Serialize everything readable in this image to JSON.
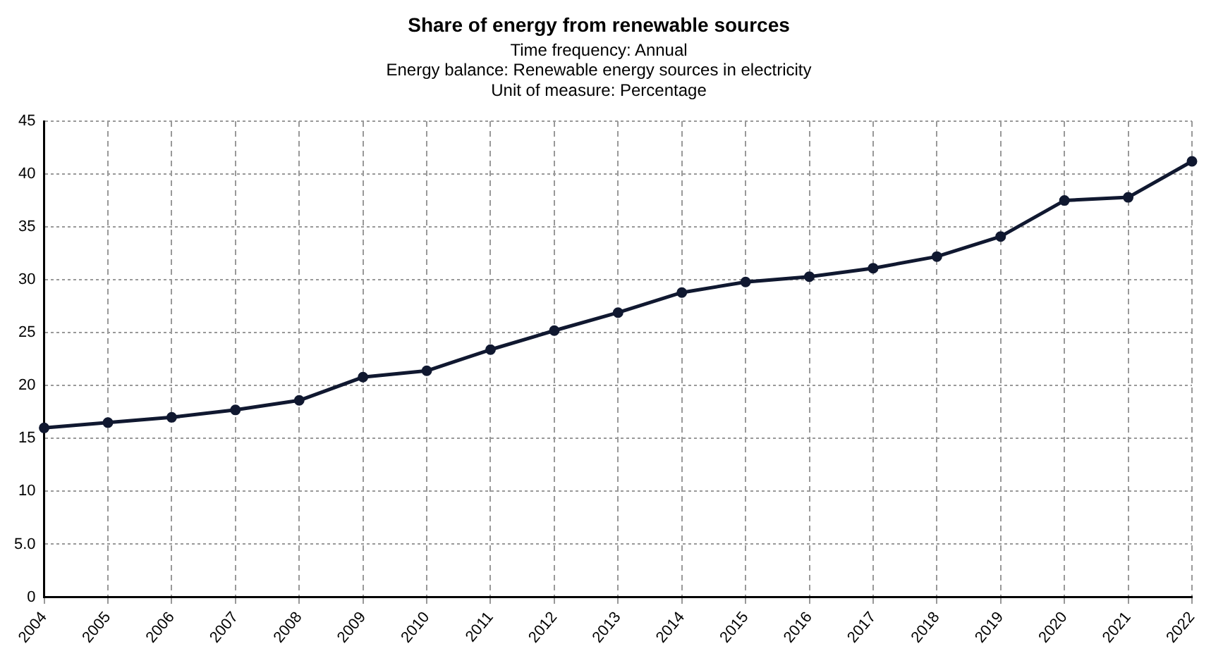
{
  "chart_data": {
    "type": "line",
    "title": "Share of energy from renewable sources",
    "subtitle": "Time frequency: Annual\nEnergy balance: Renewable energy sources in electricity\nUnit of measure: Percentage",
    "categories": [
      "2004",
      "2005",
      "2006",
      "2007",
      "2008",
      "2009",
      "2010",
      "2011",
      "2012",
      "2013",
      "2014",
      "2015",
      "2016",
      "2017",
      "2018",
      "2019",
      "2020",
      "2021",
      "2022"
    ],
    "series": [
      {
        "color": "#101830",
        "values": [
          16.0,
          16.5,
          17.0,
          17.7,
          18.6,
          20.8,
          21.4,
          23.4,
          25.2,
          26.9,
          28.8,
          29.8,
          30.3,
          31.1,
          32.2,
          34.1,
          37.5,
          37.8,
          41.2
        ]
      }
    ],
    "ylim": [
      0,
      45
    ],
    "yticks": [
      0,
      {
        "value": 5,
        "label": "5.0"
      },
      10,
      15,
      20,
      25,
      30,
      35,
      40,
      45
    ],
    "grid": true,
    "legend": false,
    "marker": "circle",
    "line_style": "solid"
  }
}
